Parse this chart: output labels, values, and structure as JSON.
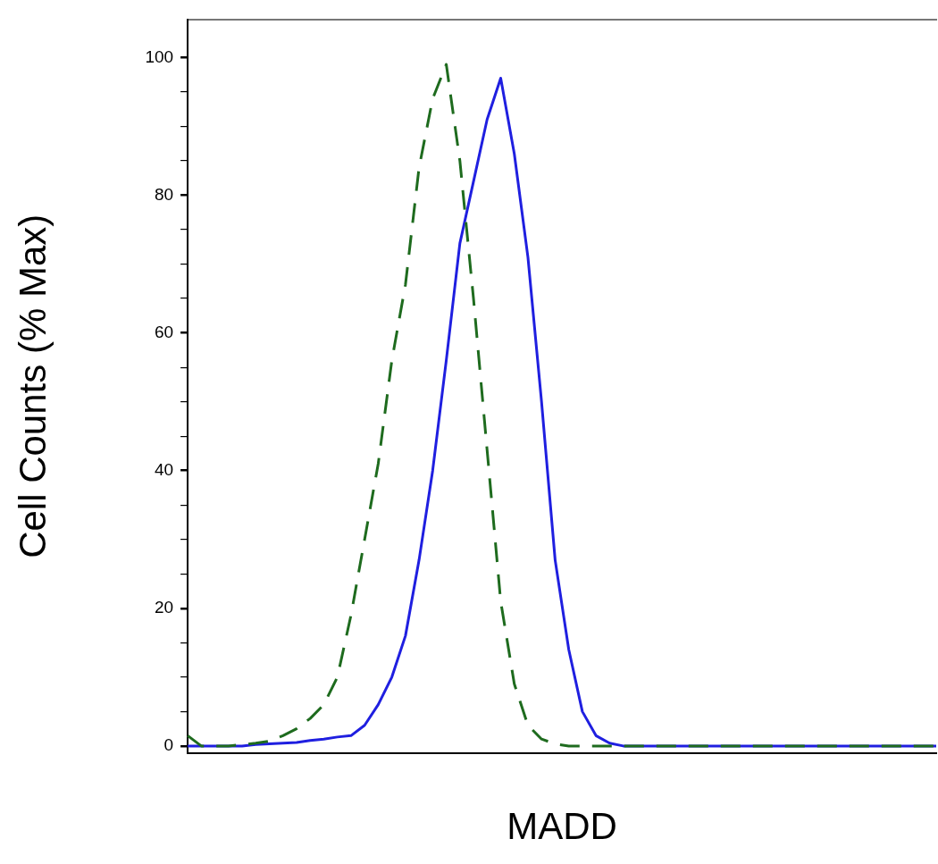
{
  "chart_data": {
    "type": "line",
    "xlabel": "MADD",
    "ylabel": "Cell Counts (% Max)",
    "categories": [
      null,
      null,
      null,
      null,
      null,
      null,
      null,
      null,
      null,
      null,
      null,
      null,
      null,
      null,
      null,
      null,
      null,
      null,
      null,
      null,
      null,
      null,
      null,
      null,
      null,
      null,
      null,
      null,
      null,
      null,
      null,
      null,
      null,
      null,
      null,
      null,
      null,
      null,
      null,
      null,
      null,
      null,
      null,
      null,
      null,
      null,
      null,
      null,
      null,
      null,
      null,
      null,
      null,
      null,
      null,
      null
    ],
    "series": [
      {
        "color": "#1e6b1e",
        "line_style": "dashed",
        "values": [
          1.5,
          0,
          0,
          0,
          0.2,
          0.4,
          0.7,
          1.5,
          2.5,
          4,
          6,
          10,
          19,
          30,
          41,
          56,
          67,
          84,
          94,
          99,
          85,
          65,
          43,
          21,
          9,
          3,
          1,
          0.3,
          0,
          0,
          0,
          0,
          0,
          0,
          0,
          0,
          0,
          0,
          0,
          0,
          0,
          0,
          0,
          0,
          0,
          0,
          0,
          0,
          0,
          0,
          0,
          0,
          0,
          0,
          0,
          0
        ]
      },
      {
        "color": "#1f1fe0",
        "line_style": "solid",
        "values": [
          0,
          0,
          0,
          0,
          0,
          0.2,
          0.3,
          0.4,
          0.5,
          0.8,
          1,
          1.3,
          1.5,
          3,
          6,
          10,
          16,
          27,
          40,
          56,
          73,
          82,
          91,
          97,
          86,
          71,
          50,
          27,
          14,
          5,
          1.5,
          0.4,
          0,
          0,
          0,
          0,
          0,
          0,
          0,
          0,
          0,
          0,
          0,
          0,
          0,
          0,
          0,
          0,
          0,
          0,
          0,
          0,
          0,
          0,
          0,
          0
        ]
      }
    ],
    "ylim": [
      -1,
      105.5
    ],
    "yticks": [
      0,
      {
        "value": 5,
        "label": null
      },
      {
        "value": 10,
        "label": null
      },
      {
        "value": 15,
        "label": null
      },
      20,
      {
        "value": 25,
        "label": null
      },
      {
        "value": 30,
        "label": null
      },
      {
        "value": 35,
        "label": null
      },
      40,
      {
        "value": 45,
        "label": null
      },
      {
        "value": 50,
        "label": null
      },
      {
        "value": 55,
        "label": null
      },
      60,
      {
        "value": 65,
        "label": null
      },
      {
        "value": 70,
        "label": null
      },
      {
        "value": 75,
        "label": null
      },
      80,
      {
        "value": 85,
        "label": null
      },
      {
        "value": 90,
        "label": null
      },
      {
        "value": 95,
        "label": null
      },
      100
    ],
    "grid": false,
    "tick_labels": "y"
  }
}
